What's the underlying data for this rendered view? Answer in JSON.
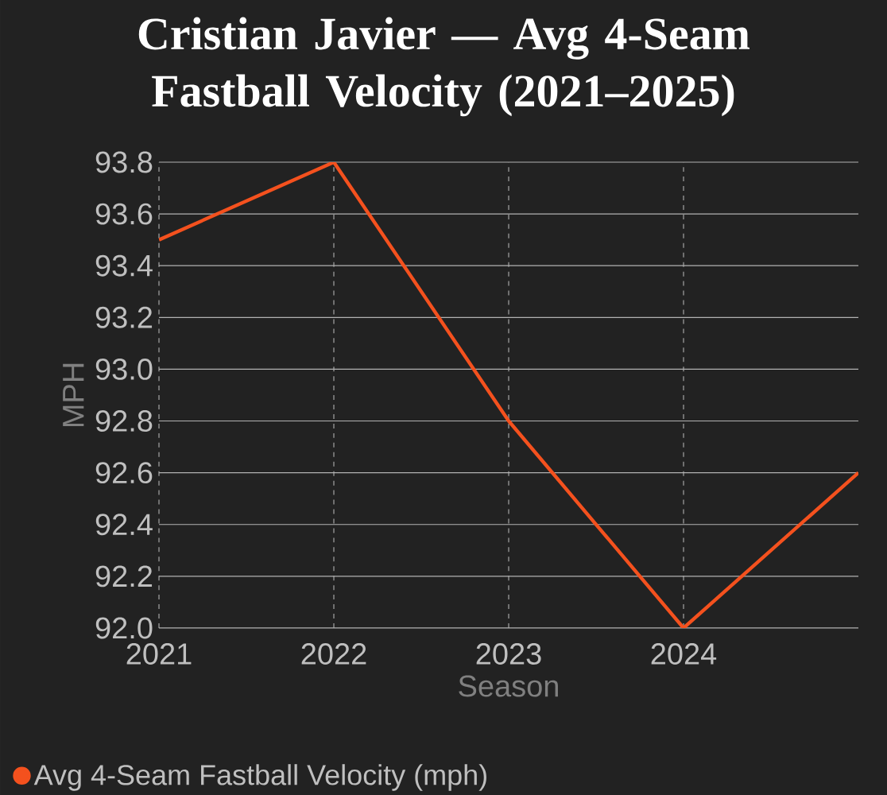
{
  "chart_data": {
    "type": "line",
    "title": "Cristian Javier — Avg 4-Seam Fastball Velocity (2021–2025)",
    "xlabel": "Season",
    "ylabel": "MPH",
    "x": [
      2021,
      2022,
      2023,
      2024,
      2025
    ],
    "series": [
      {
        "name": "Avg 4-Seam Fastball Velocity (mph)",
        "color": "#f4511e",
        "values": [
          93.5,
          93.8,
          92.8,
          92.0,
          92.6
        ]
      }
    ],
    "xlim": [
      2021,
      2025
    ],
    "xticks": [
      2021,
      2022,
      2023,
      2024
    ],
    "ylim": [
      92.0,
      93.8
    ],
    "yticks": [
      {
        "value": 92.0,
        "label": "92.0"
      },
      {
        "value": 92.2,
        "label": "92.2"
      },
      {
        "value": 92.4,
        "label": "92.4"
      },
      {
        "value": 92.6,
        "label": "92.6"
      },
      {
        "value": 92.8,
        "label": "92.8"
      },
      {
        "value": 93.0,
        "label": "93.0"
      },
      {
        "value": 93.2,
        "label": "93.2"
      },
      {
        "value": 93.4,
        "label": "93.4"
      },
      {
        "value": 93.6,
        "label": "93.6"
      },
      {
        "value": 93.8,
        "label": "93.8"
      }
    ],
    "grid": true,
    "legend": "bottom"
  }
}
